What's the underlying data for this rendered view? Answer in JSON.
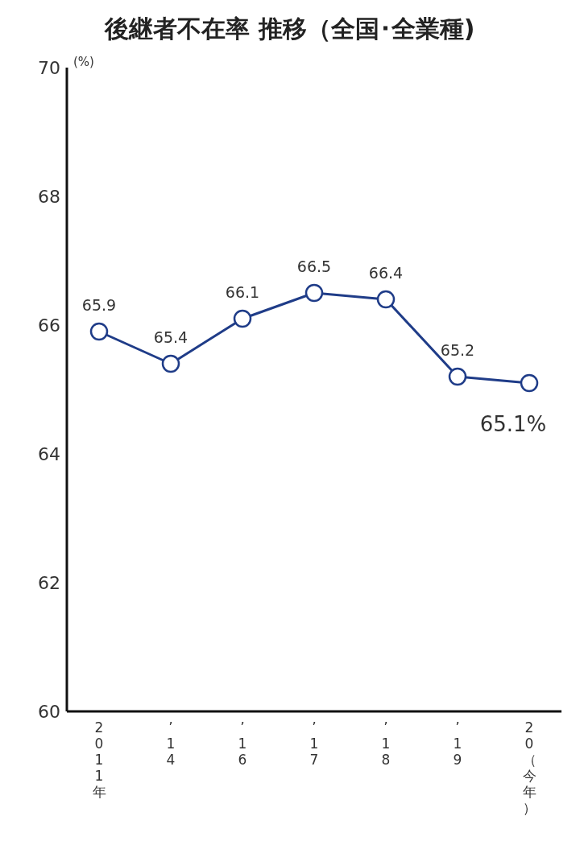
{
  "chart_data": {
    "type": "line",
    "title": "後継者不在率 推移（全国･全業種)",
    "ylabel": "(%)",
    "categories": [
      "2011年",
      "’14",
      "’16",
      "’17",
      "’18",
      "’19",
      "20（今年）"
    ],
    "series": [
      {
        "color": "#1f3c88",
        "values": [
          65.9,
          65.4,
          66.1,
          66.5,
          66.4,
          65.2,
          65.1
        ],
        "value_labels": [
          "65.9",
          "65.4",
          "66.1",
          "66.5",
          "66.4",
          "65.2",
          "65.1%"
        ]
      }
    ],
    "ylim": [
      60,
      70
    ],
    "yticks": [
      60,
      62,
      64,
      66,
      68,
      70
    ],
    "grid": false,
    "legend": false,
    "marker": "circle",
    "line_style": "solid"
  }
}
